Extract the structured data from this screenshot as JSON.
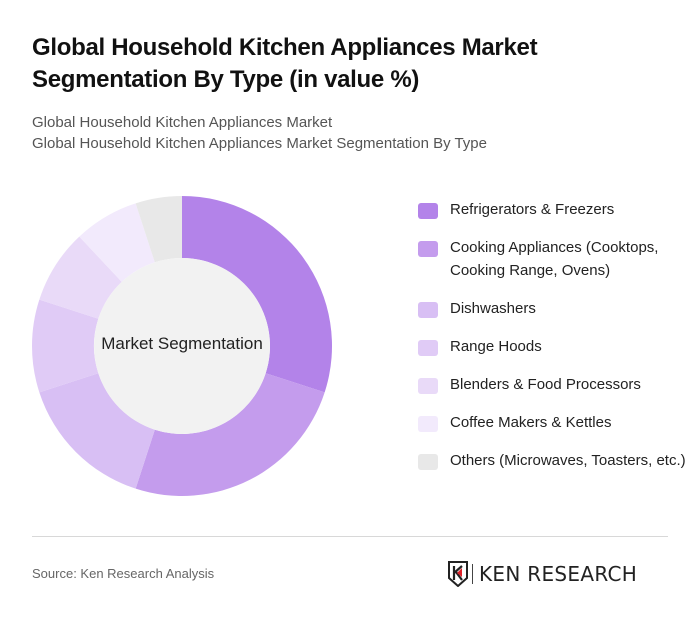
{
  "header": {
    "title": "Global Household Kitchen Appliances Market Segmentation By Type (in value %)",
    "subtitle_line1": "Global Household Kitchen Appliances Market",
    "subtitle_line2": "Global Household Kitchen Appliances Market Segmentation By Type"
  },
  "chart_data": {
    "type": "pie",
    "variant": "donut",
    "title": "Global Household Kitchen Appliances Market Segmentation By Type (in value %)",
    "center_label": "Market Segmentation",
    "categories": [
      "Refrigerators & Freezers",
      "Cooking Appliances (Cooktops, Cooking Range, Ovens)",
      "Dishwashers",
      "Range Hoods",
      "Blenders & Food Processors",
      "Coffee Makers & Kettles",
      "Others (Microwaves, Toasters, etc.)"
    ],
    "values": [
      30,
      25,
      15,
      10,
      8,
      7,
      5
    ],
    "colors": [
      "#b383e9",
      "#c49ced",
      "#d8bff4",
      "#e0cbf6",
      "#e9daf8",
      "#f2eafc",
      "#e8e8e8"
    ],
    "legend_position": "right",
    "unit": "%"
  },
  "legend": {
    "items": [
      {
        "label": "Refrigerators & Freezers",
        "color": "#b383e9"
      },
      {
        "label": "Cooking Appliances (Cooktops, Cooking Range, Ovens)",
        "color": "#c49ced"
      },
      {
        "label": "Dishwashers",
        "color": "#d8bff4"
      },
      {
        "label": "Range Hoods",
        "color": "#e0cbf6"
      },
      {
        "label": "Blenders & Food Processors",
        "color": "#e9daf8"
      },
      {
        "label": "Coffee Makers & Kettles",
        "color": "#f2eafc"
      },
      {
        "label": "Others (Microwaves, Toasters, etc.)",
        "color": "#e8e8e8"
      }
    ]
  },
  "footer": {
    "source": "Source: Ken Research Analysis",
    "logo_text": "KEN RESEARCH",
    "accent_color": "#e0242b"
  }
}
